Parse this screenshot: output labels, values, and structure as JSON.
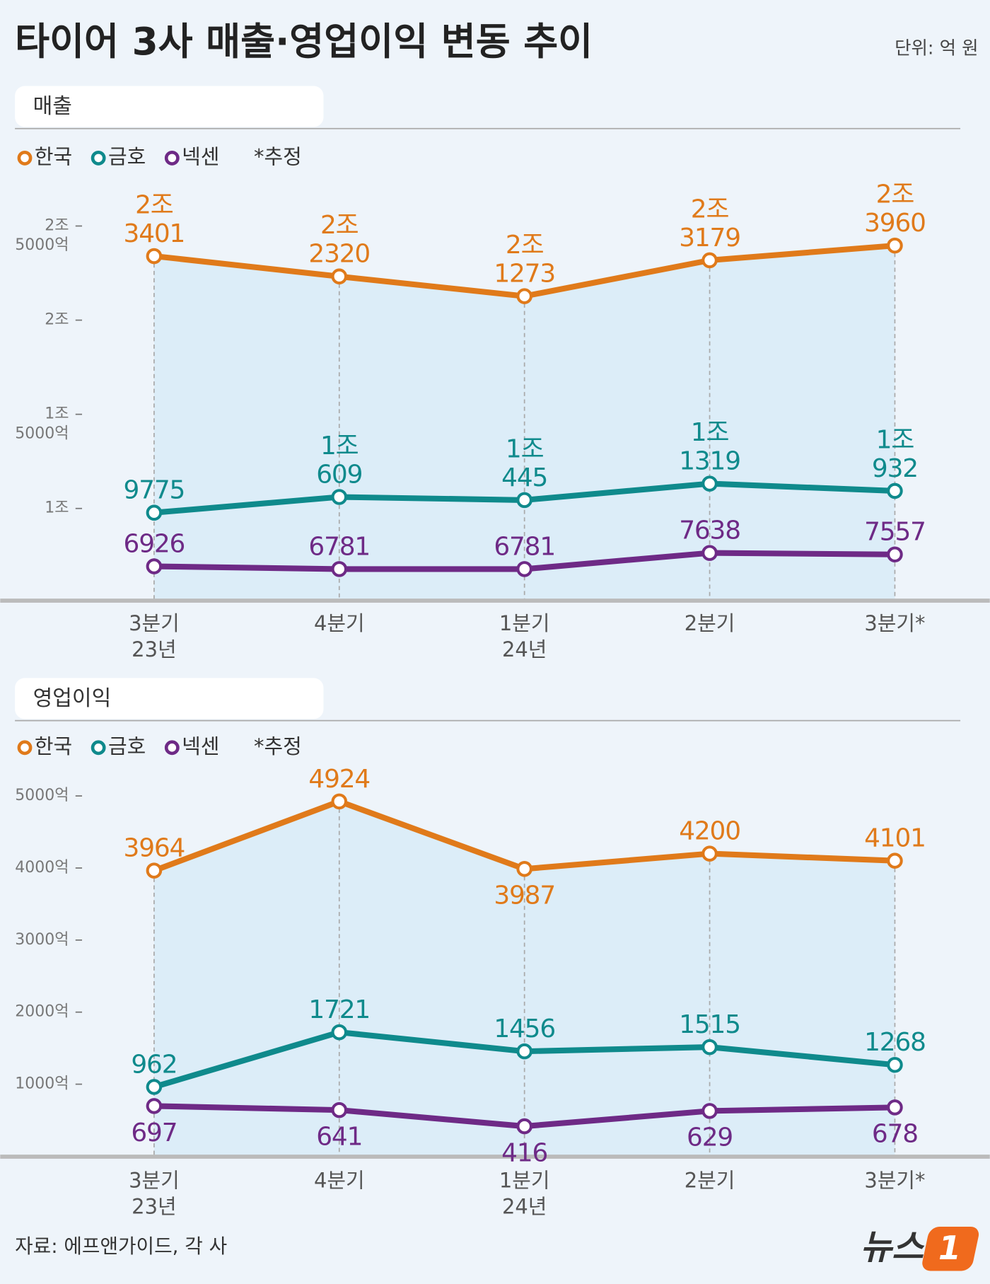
{
  "title": "타이어 3사 매출·영업이익 변동 추이",
  "unit": "단위: 억 원",
  "source": "자료: 에프앤가이드, 각 사",
  "logo": {
    "text": "뉴스",
    "mark": "1"
  },
  "chart_data": [
    {
      "type": "line",
      "title": "매출",
      "note": "*추정",
      "categories": [
        [
          "3분기",
          "23년"
        ],
        [
          "4분기"
        ],
        [
          "1분기",
          "24년"
        ],
        [
          "2분기"
        ],
        [
          "3분기*"
        ]
      ],
      "ylim": [
        5300,
        27000
      ],
      "yticks": [
        {
          "value": 10000,
          "label": [
            "1조"
          ]
        },
        {
          "value": 15000,
          "label": [
            "1조",
            "5000억"
          ]
        },
        {
          "value": 20000,
          "label": [
            "2조"
          ]
        },
        {
          "value": 25000,
          "label": [
            "2조",
            "5000억"
          ]
        }
      ],
      "series": [
        {
          "name": "한국",
          "color": "#e07a1a",
          "values": [
            23401,
            22320,
            21273,
            23179,
            23960
          ],
          "value_labels": [
            [
              "2조",
              "3401"
            ],
            [
              "2조",
              "2320"
            ],
            [
              "2조",
              "1273"
            ],
            [
              "2조",
              "3179"
            ],
            [
              "2조",
              "3960"
            ]
          ]
        },
        {
          "name": "금호",
          "color": "#0f8a8c",
          "values": [
            9775,
            10609,
            10445,
            11319,
            10932
          ],
          "value_labels": [
            [
              "9775"
            ],
            [
              "1조",
              "609"
            ],
            [
              "1조",
              "445"
            ],
            [
              "1조",
              "1319"
            ],
            [
              "1조",
              "932"
            ]
          ]
        },
        {
          "name": "넥센",
          "color": "#6e2a86",
          "values": [
            6926,
            6781,
            6781,
            7638,
            7557
          ]
        }
      ]
    },
    {
      "type": "line",
      "title": "영업이익",
      "note": "*추정",
      "categories": [
        [
          "3분기",
          "23년"
        ],
        [
          "4분기"
        ],
        [
          "1분기",
          "24년"
        ],
        [
          "2분기"
        ],
        [
          "3분기*"
        ]
      ],
      "ylim": [
        0,
        5500
      ],
      "yticks": [
        {
          "value": 1000,
          "label": [
            "1000억"
          ]
        },
        {
          "value": 2000,
          "label": [
            "2000억"
          ]
        },
        {
          "value": 3000,
          "label": [
            "3000억"
          ]
        },
        {
          "value": 4000,
          "label": [
            "4000억"
          ]
        },
        {
          "value": 5000,
          "label": [
            "5000억"
          ]
        }
      ],
      "series": [
        {
          "name": "한국",
          "color": "#e07a1a",
          "values": [
            3964,
            4924,
            3987,
            4200,
            4101
          ]
        },
        {
          "name": "금호",
          "color": "#0f8a8c",
          "values": [
            962,
            1721,
            1456,
            1515,
            1268
          ]
        },
        {
          "name": "넥센",
          "color": "#6e2a86",
          "values": [
            697,
            641,
            416,
            629,
            678
          ]
        }
      ]
    }
  ]
}
